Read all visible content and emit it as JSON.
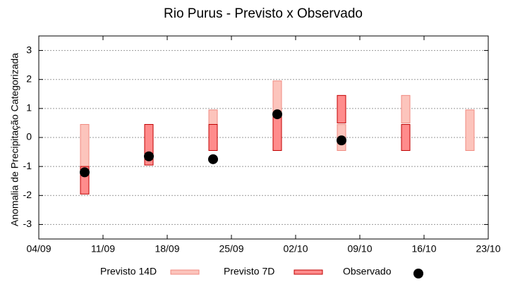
{
  "chart_data": {
    "type": "range-bar",
    "title": "Rio Purus - Previsto x Observado",
    "y_label": "Anomalia de Precipitação Categorizada",
    "x": [
      5,
      12,
      19,
      26,
      33,
      40,
      47
    ],
    "xlim": [
      0,
      49
    ],
    "xticks": [
      {
        "value": 0,
        "label": "04/09"
      },
      {
        "value": 7,
        "label": "11/09"
      },
      {
        "value": 14,
        "label": "18/09"
      },
      {
        "value": 21,
        "label": "25/09"
      },
      {
        "value": 28,
        "label": "02/10"
      },
      {
        "value": 35,
        "label": "09/10"
      },
      {
        "value": 42,
        "label": "16/10"
      },
      {
        "value": 49,
        "label": "23/10"
      }
    ],
    "ylim": [
      -3.5,
      3.5
    ],
    "yticks": [
      -3,
      -2,
      -1,
      0,
      1,
      2,
      3
    ],
    "grid": true,
    "series": [
      {
        "name": "Previsto 14D",
        "color": "#fcc4bc",
        "edge": "#f08a80",
        "low": [
          -1,
          null,
          -0.45,
          -0.45,
          -0.45,
          0.5,
          -0.45
        ],
        "high": [
          0.45,
          null,
          0.95,
          1.95,
          0.45,
          1.45,
          0.95
        ]
      },
      {
        "name": "Previsto 7D",
        "color": "#ff8c8c",
        "edge": "#c00000",
        "low": [
          -1.95,
          -0.95,
          -0.45,
          -0.45,
          0.5,
          -0.45,
          null
        ],
        "high": [
          -1,
          0.45,
          0.45,
          0.85,
          1.45,
          0.45,
          null
        ]
      },
      {
        "name": "Observado",
        "color": "#000000",
        "values": [
          -1.2,
          -0.65,
          -0.75,
          0.8,
          -0.1,
          null,
          null
        ]
      }
    ]
  }
}
